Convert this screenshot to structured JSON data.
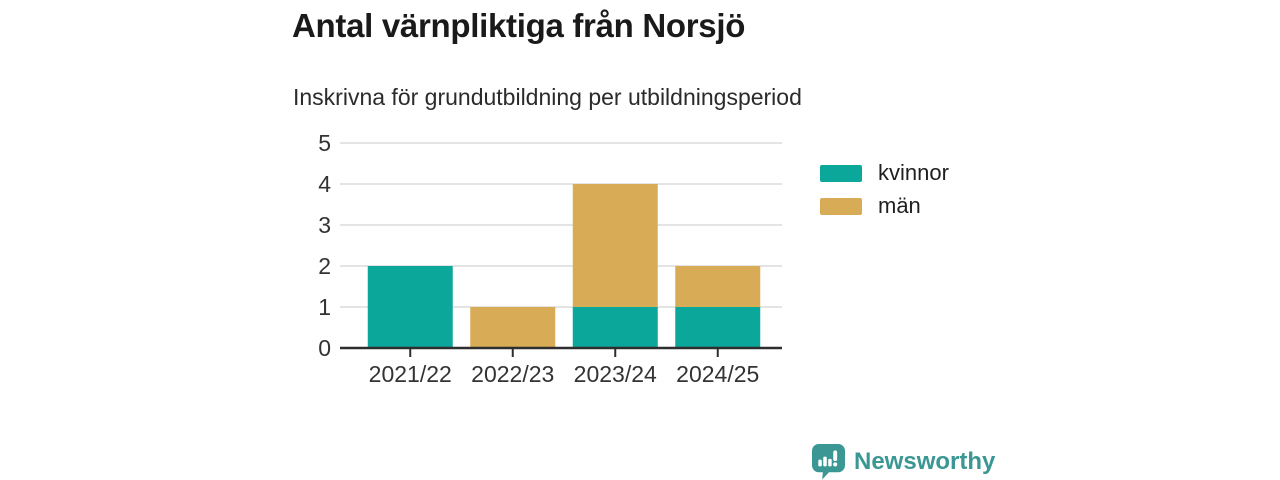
{
  "chart_data": {
    "type": "bar",
    "stacked": true,
    "title": "Antal värnpliktiga från Norsjö",
    "subtitle": "Inskrivna för grundutbildning per utbildningsperiod",
    "categories": [
      "2021/22",
      "2022/23",
      "2023/24",
      "2024/25"
    ],
    "series": [
      {
        "name": "kvinnor",
        "color": "#0ba79b",
        "values": [
          2,
          0,
          1,
          1
        ]
      },
      {
        "name": "män",
        "color": "#d8ab57",
        "values": [
          0,
          1,
          3,
          1
        ]
      }
    ],
    "xlabel": "",
    "ylabel": "",
    "ylim": [
      0,
      5
    ],
    "yticks": [
      0,
      1,
      2,
      3,
      4,
      5
    ],
    "grid": true,
    "legend_position": "right",
    "colors": {
      "axis": "#2e2e2e",
      "grid": "#dcdcdc",
      "tick_text": "#333333"
    }
  },
  "footer": {
    "brand": "Newsworthy",
    "brand_color": "#3a9793"
  }
}
